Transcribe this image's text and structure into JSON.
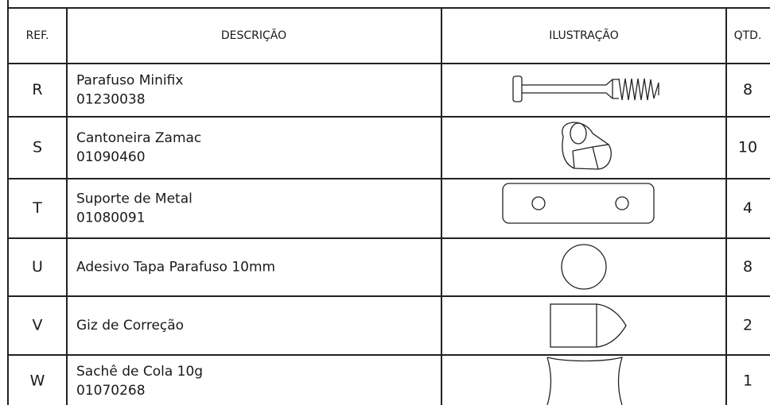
{
  "table": {
    "header": [
      "REF.",
      "DESCRIÇÃO",
      "ILUSTRAÇÃO",
      "QTD."
    ],
    "rows": [
      {
        "ref": "R",
        "description": [
          "Parafuso Minifix",
          "01230038"
        ],
        "qty": "8"
      },
      {
        "ref": "S",
        "description": [
          "Cantoneira Zamac",
          "01090460"
        ],
        "qty": "10"
      },
      {
        "ref": "T",
        "description": [
          "Suporte de Metal",
          "01080091"
        ],
        "qty": "4"
      },
      {
        "ref": "U",
        "description": [
          "Adesivo Tapa Parafuso 10mm"
        ],
        "qty": "8"
      },
      {
        "ref": "V",
        "description": [
          "Giz de Correção"
        ],
        "qty": "2"
      },
      {
        "ref": "W",
        "description": [
          "Sachê de Cola 10g",
          "01070268"
        ],
        "qty": "1"
      }
    ]
  }
}
